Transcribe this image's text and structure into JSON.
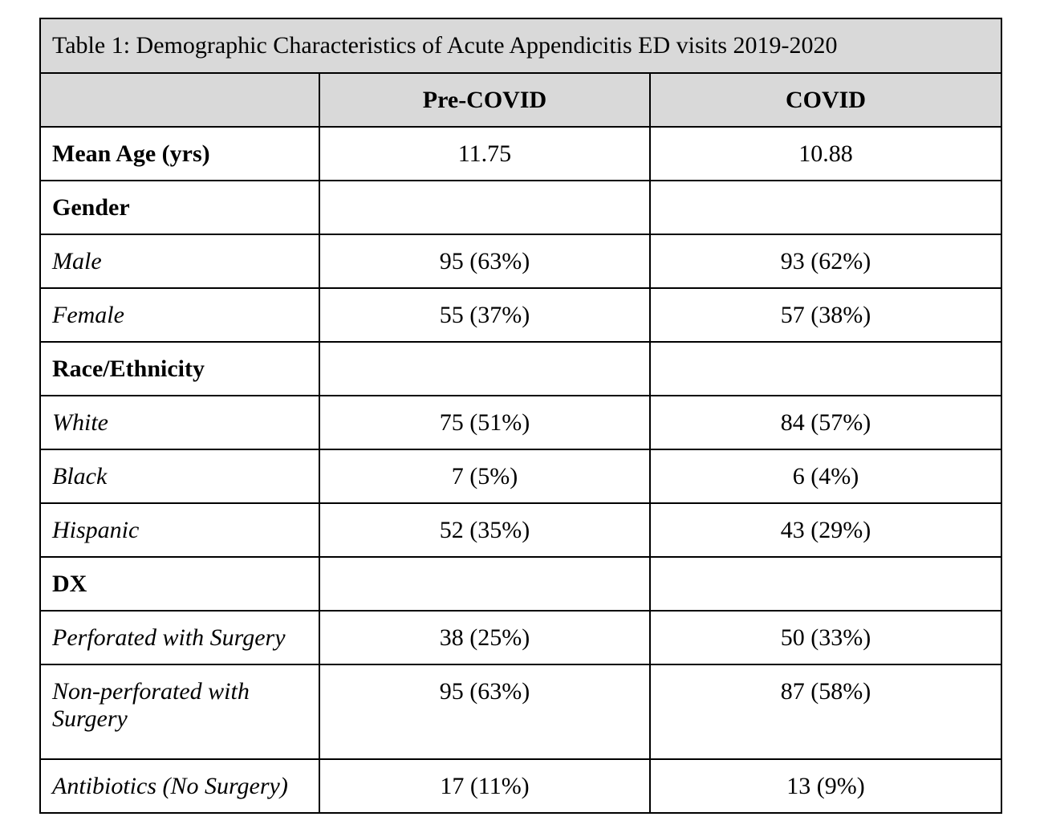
{
  "table": {
    "caption": "Table 1: Demographic Characteristics of Acute Appendicitis ED visits 2019-2020",
    "header": [
      "",
      "Pre-COVID",
      "COVID"
    ],
    "rows": [
      {
        "label": "Mean Age (yrs)",
        "style": "bold",
        "pre": "11.75",
        "covid": "10.88"
      },
      {
        "label": "Gender",
        "style": "bold",
        "pre": "",
        "covid": ""
      },
      {
        "label": "Male",
        "style": "italic",
        "pre": "95 (63%)",
        "covid": "93 (62%)"
      },
      {
        "label": "Female",
        "style": "italic",
        "pre": "55 (37%)",
        "covid": "57 (38%)"
      },
      {
        "label": "Race/Ethnicity",
        "style": "bold",
        "pre": "",
        "covid": ""
      },
      {
        "label": "White",
        "style": "italic",
        "pre": "75 (51%)",
        "covid": "84 (57%)"
      },
      {
        "label": "Black",
        "style": "italic",
        "pre": "7 (5%)",
        "covid": "6 (4%)"
      },
      {
        "label": "Hispanic",
        "style": "italic",
        "pre": "52 (35%)",
        "covid": "43 (29%)"
      },
      {
        "label": "DX",
        "style": "bold",
        "pre": "",
        "covid": ""
      },
      {
        "label": "Perforated with Surgery",
        "style": "italic",
        "pre": "38 (25%)",
        "covid": "50 (33%)"
      },
      {
        "label": "Non-perforated with Surgery",
        "style": "italic",
        "pre": "95 (63%)",
        "covid": "87 (58%)"
      },
      {
        "label": "Antibiotics (No Surgery)",
        "style": "italic",
        "pre": "17 (11%)",
        "covid": "13 (9%)"
      }
    ]
  },
  "colors": {
    "header_background": "#d9d9d9",
    "border": "#000000",
    "text": "#000000"
  }
}
